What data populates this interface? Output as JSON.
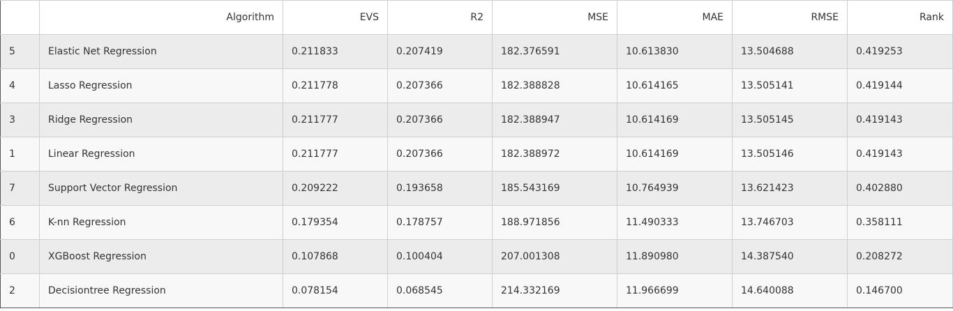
{
  "table": {
    "columns": [
      "",
      "Algorithm",
      "EVS",
      "R2",
      "MSE",
      "MAE",
      "RMSE",
      "Rank"
    ],
    "rows": [
      [
        "5",
        "Elastic Net Regression",
        "0.211833",
        "0.207419",
        "182.376591",
        "10.613830",
        "13.504688",
        "0.419253"
      ],
      [
        "4",
        "Lasso Regression",
        "0.211778",
        "0.207366",
        "182.388828",
        "10.614165",
        "13.505141",
        "0.419144"
      ],
      [
        "3",
        "Ridge Regression",
        "0.211777",
        "0.207366",
        "182.388947",
        "10.614169",
        "13.505145",
        "0.419143"
      ],
      [
        "1",
        "Linear Regression",
        "0.211777",
        "0.207366",
        "182.388972",
        "10.614169",
        "13.505146",
        "0.419143"
      ],
      [
        "7",
        "Support Vector Regression",
        "0.209222",
        "0.193658",
        "185.543169",
        "10.764939",
        "13.621423",
        "0.402880"
      ],
      [
        "6",
        "K-nn Regression",
        "0.179354",
        "0.178757",
        "188.971856",
        "11.490333",
        "13.746703",
        "0.358111"
      ],
      [
        "0",
        "XGBoost Regression",
        "0.107868",
        "0.100404",
        "207.001308",
        "11.890980",
        "14.387540",
        "0.208272"
      ],
      [
        "2",
        "Decisiontree Regression",
        "0.078154",
        "0.068545",
        "214.332169",
        "11.966699",
        "14.640088",
        "0.146700"
      ]
    ]
  }
}
